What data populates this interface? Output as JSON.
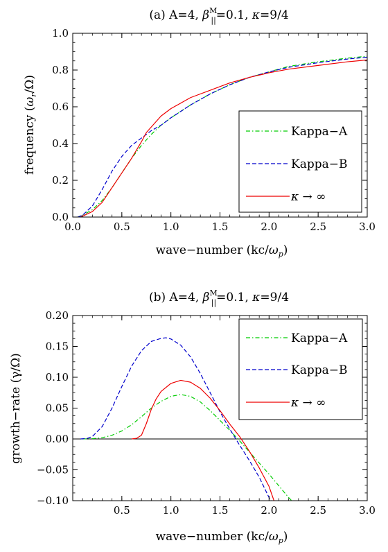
{
  "chart_data": [
    {
      "id": "a",
      "type": "line",
      "title": {
        "prefix": "(a) A=4, ",
        "beta": "β",
        "beta_sup": "M",
        "beta_sub": "||",
        "rest": "=0.1, ",
        "kappa": "κ",
        "kappa_val": "=9/4"
      },
      "xlabel": {
        "text": "wave−number (kc/",
        "omega": "ω",
        "sub": "p",
        "close": ")"
      },
      "ylabel": {
        "text": "frequency (",
        "omega": "ω",
        "sub": "r",
        "close": "/Ω)"
      },
      "xlim": [
        0,
        3
      ],
      "ylim": [
        0,
        1
      ],
      "xticks": [
        "0.0",
        "0.5",
        "1.0",
        "1.5",
        "2.0",
        "2.5",
        "3.0"
      ],
      "xtick_values": [
        0,
        0.5,
        1,
        1.5,
        2,
        2.5,
        3
      ],
      "yticks": [
        "0.0",
        "0.2",
        "0.4",
        "0.6",
        "0.8",
        "1.0"
      ],
      "ytick_values": [
        0,
        0.2,
        0.4,
        0.6,
        0.8,
        1.0
      ],
      "legend_position": "right",
      "series": [
        {
          "name": "Kappa−A",
          "color": "#00cc00",
          "dash": "dashdot",
          "x": [
            0.05,
            0.1,
            0.2,
            0.3,
            0.4,
            0.5,
            0.6,
            0.7,
            0.8,
            0.9,
            1.0,
            1.2,
            1.4,
            1.6,
            1.8,
            2.0,
            2.2,
            2.5,
            2.8,
            3.0
          ],
          "y": [
            0.0,
            0.01,
            0.04,
            0.09,
            0.16,
            0.24,
            0.32,
            0.39,
            0.45,
            0.5,
            0.54,
            0.61,
            0.67,
            0.72,
            0.76,
            0.79,
            0.82,
            0.845,
            0.865,
            0.875
          ]
        },
        {
          "name": "Kappa−B",
          "color": "#0000cc",
          "dash": "dashed",
          "x": [
            0.05,
            0.1,
            0.2,
            0.3,
            0.4,
            0.5,
            0.6,
            0.7,
            0.8,
            0.9,
            1.0,
            1.2,
            1.4,
            1.6,
            1.8,
            2.0,
            2.2,
            2.5,
            2.8,
            3.0
          ],
          "y": [
            0.0,
            0.01,
            0.06,
            0.15,
            0.25,
            0.33,
            0.39,
            0.43,
            0.47,
            0.5,
            0.54,
            0.61,
            0.67,
            0.72,
            0.76,
            0.79,
            0.815,
            0.84,
            0.86,
            0.87
          ]
        },
        {
          "name": "κ → ∞",
          "color": "#ee0000",
          "dash": "solid",
          "x": [
            0.08,
            0.1,
            0.2,
            0.3,
            0.4,
            0.5,
            0.6,
            0.7,
            0.75,
            0.8,
            0.9,
            1.0,
            1.2,
            1.4,
            1.6,
            1.8,
            2.0,
            2.2,
            2.5,
            2.8,
            3.0
          ],
          "y": [
            0.0,
            0.005,
            0.03,
            0.08,
            0.16,
            0.24,
            0.32,
            0.41,
            0.46,
            0.49,
            0.55,
            0.59,
            0.65,
            0.69,
            0.73,
            0.76,
            0.785,
            0.805,
            0.825,
            0.845,
            0.855
          ]
        }
      ]
    },
    {
      "id": "b",
      "type": "line",
      "title": {
        "prefix": "(b) A=4, ",
        "beta": "β",
        "beta_sup": "M",
        "beta_sub": "||",
        "rest": "=0.1, ",
        "kappa": "κ",
        "kappa_val": "=9/4"
      },
      "xlabel": {
        "text": "wave−number (kc/",
        "omega": "ω",
        "sub": "p",
        "close": ")"
      },
      "ylabel": {
        "text": "growth−rate (γ/Ω)"
      },
      "xlim": [
        0,
        3
      ],
      "ylim": [
        -0.1,
        0.2
      ],
      "xticks": [
        "0.5",
        "1.0",
        "1.5",
        "2.0",
        "2.5",
        "3.0"
      ],
      "xtick_values": [
        0.5,
        1,
        1.5,
        2,
        2.5,
        3
      ],
      "yticks": [
        "−0.10",
        "−0.05",
        "0.00",
        "0.05",
        "0.10",
        "0.15",
        "0.20"
      ],
      "ytick_values": [
        -0.1,
        -0.05,
        0,
        0.05,
        0.1,
        0.15,
        0.2
      ],
      "zero_line": true,
      "legend_position": "top-right",
      "series": [
        {
          "name": "Kappa−A",
          "color": "#00cc00",
          "dash": "dashdot",
          "x": [
            0.1,
            0.2,
            0.3,
            0.4,
            0.5,
            0.6,
            0.7,
            0.8,
            0.9,
            1.0,
            1.1,
            1.2,
            1.3,
            1.4,
            1.5,
            1.6,
            1.7,
            1.8,
            1.9,
            2.0,
            2.1,
            2.2,
            2.23
          ],
          "y": [
            0.0,
            0.0005,
            0.002,
            0.006,
            0.013,
            0.023,
            0.036,
            0.05,
            0.061,
            0.069,
            0.072,
            0.069,
            0.06,
            0.046,
            0.03,
            0.014,
            -0.003,
            -0.021,
            -0.039,
            -0.057,
            -0.076,
            -0.095,
            -0.1
          ]
        },
        {
          "name": "Kappa−B",
          "color": "#0000cc",
          "dash": "dashed",
          "x": [
            0.08,
            0.15,
            0.2,
            0.3,
            0.4,
            0.5,
            0.6,
            0.7,
            0.8,
            0.9,
            0.95,
            1.0,
            1.1,
            1.2,
            1.3,
            1.4,
            1.5,
            1.6,
            1.7,
            1.8,
            1.9,
            2.0,
            2.02
          ],
          "y": [
            0.0,
            0.001,
            0.004,
            0.02,
            0.05,
            0.085,
            0.118,
            0.143,
            0.158,
            0.163,
            0.164,
            0.162,
            0.152,
            0.133,
            0.106,
            0.075,
            0.044,
            0.016,
            -0.01,
            -0.035,
            -0.062,
            -0.095,
            -0.1
          ]
        },
        {
          "name": "κ → ∞",
          "color": "#ee0000",
          "dash": "solid",
          "x": [
            0.6,
            0.65,
            0.7,
            0.75,
            0.8,
            0.85,
            0.9,
            1.0,
            1.1,
            1.2,
            1.3,
            1.4,
            1.5,
            1.6,
            1.7,
            1.8,
            1.9,
            2.0,
            2.05
          ],
          "y": [
            0.0,
            0.001,
            0.006,
            0.025,
            0.048,
            0.065,
            0.077,
            0.09,
            0.095,
            0.092,
            0.082,
            0.066,
            0.046,
            0.024,
            0.004,
            -0.02,
            -0.047,
            -0.077,
            -0.1
          ]
        }
      ]
    }
  ]
}
